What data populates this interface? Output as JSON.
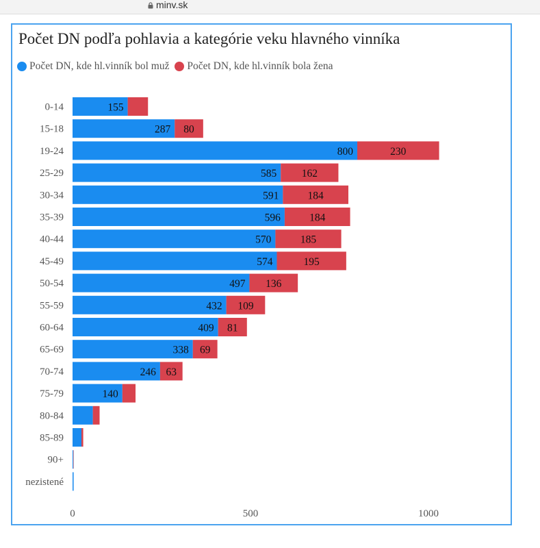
{
  "browser": {
    "url": "minv.sk"
  },
  "chart_data": {
    "type": "bar",
    "orientation": "horizontal",
    "stacked": true,
    "title": "Počet DN podľa pohlavia a kategórie veku hlavného vinníka",
    "legend_position": "top-left",
    "categories": [
      "0-14",
      "15-18",
      "19-24",
      "25-29",
      "30-34",
      "35-39",
      "40-44",
      "45-49",
      "50-54",
      "55-59",
      "60-64",
      "65-69",
      "70-74",
      "75-79",
      "80-84",
      "85-89",
      "90+",
      "nezistené"
    ],
    "series": [
      {
        "name": "Počet DN, kde hl.vinník bol muž",
        "color": "#1a8cf0",
        "values": [
          155,
          287,
          800,
          585,
          591,
          596,
          570,
          574,
          497,
          432,
          409,
          338,
          246,
          140,
          57,
          25,
          2,
          3
        ],
        "labels": [
          "155",
          "287",
          "800",
          "585",
          "591",
          "596",
          "570",
          "574",
          "497",
          "432",
          "409",
          "338",
          "246",
          "140",
          "",
          "",
          "",
          ""
        ]
      },
      {
        "name": "Počet DN, kde hl.vinník bola žena",
        "color": "#d8434e",
        "values": [
          57,
          80,
          230,
          162,
          184,
          184,
          185,
          195,
          136,
          109,
          81,
          69,
          63,
          37,
          19,
          5,
          1,
          0
        ],
        "labels": [
          "",
          "80",
          "230",
          "162",
          "184",
          "184",
          "185",
          "195",
          "136",
          "109",
          "81",
          "69",
          "63",
          "",
          "",
          "",
          "",
          ""
        ]
      }
    ],
    "xlim": [
      0,
      1200
    ],
    "xticks": [
      "0",
      "500",
      "1000"
    ],
    "xtick_values": [
      0,
      500,
      1000
    ],
    "grid": false
  }
}
